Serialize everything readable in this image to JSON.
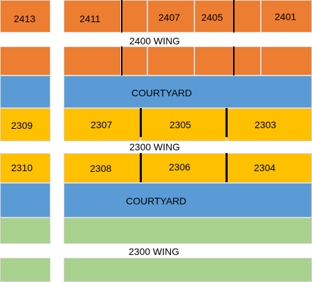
{
  "colors": {
    "wing_2400": "#ed7d31",
    "courtyard": "#5b9bd5",
    "wing_2300": "#ffc000",
    "green_wing": "#a9d18e",
    "path": "#ffffff",
    "divider": "#000000"
  },
  "rooms": {
    "r2413": "2413",
    "r2411": "2411",
    "r2407": "2407",
    "r2405": "2405",
    "r2401": "2401",
    "r2309": "2309",
    "r2307": "2307",
    "r2305": "2305",
    "r2303": "2303",
    "r2310": "2310",
    "r2308": "2308",
    "r2306": "2306",
    "r2304": "2304"
  },
  "labels": {
    "wing_2400": "2400 WING",
    "courtyard_upper": "COURTYARD",
    "wing_2300_mid": "2300 WING",
    "courtyard_lower": "COURTYARD",
    "wing_2300_bottom": "2300 WING"
  }
}
